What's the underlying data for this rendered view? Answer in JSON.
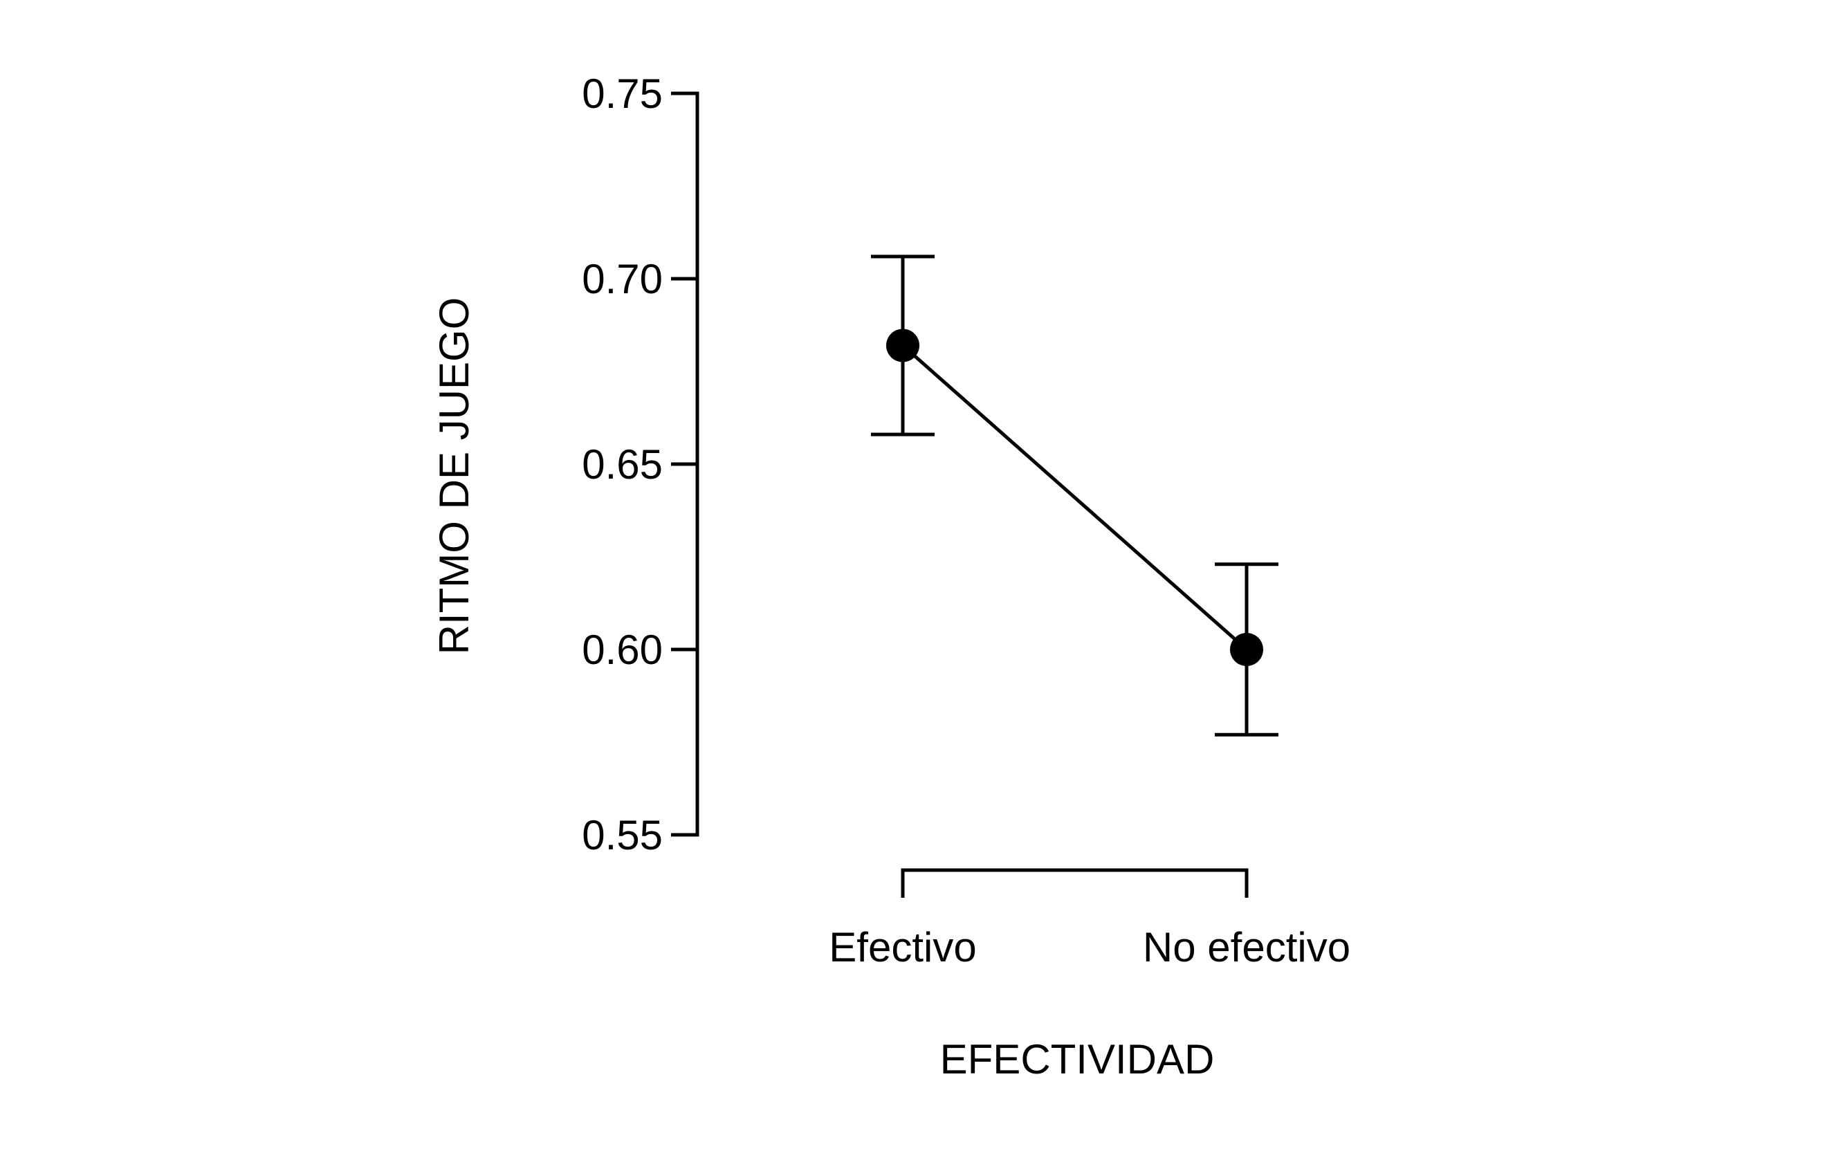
{
  "chart_data": {
    "type": "line",
    "xlabel": "EFECTIVIDAD",
    "ylabel": "RITMO DE JUEGO",
    "categories": [
      "Efectivo",
      "No efectivo"
    ],
    "series": [
      {
        "values": [
          0.682,
          0.6
        ],
        "error_low": [
          0.658,
          0.577
        ],
        "error_high": [
          0.706,
          0.623
        ]
      }
    ],
    "ylim": [
      0.55,
      0.75
    ],
    "yticks": [
      0.55,
      0.6,
      0.65,
      0.7,
      0.75
    ],
    "ytick_labels": [
      "0.55",
      "0.60",
      "0.65",
      "0.70",
      "0.75"
    ],
    "grid": false,
    "legend": "none",
    "color": "#000000"
  }
}
